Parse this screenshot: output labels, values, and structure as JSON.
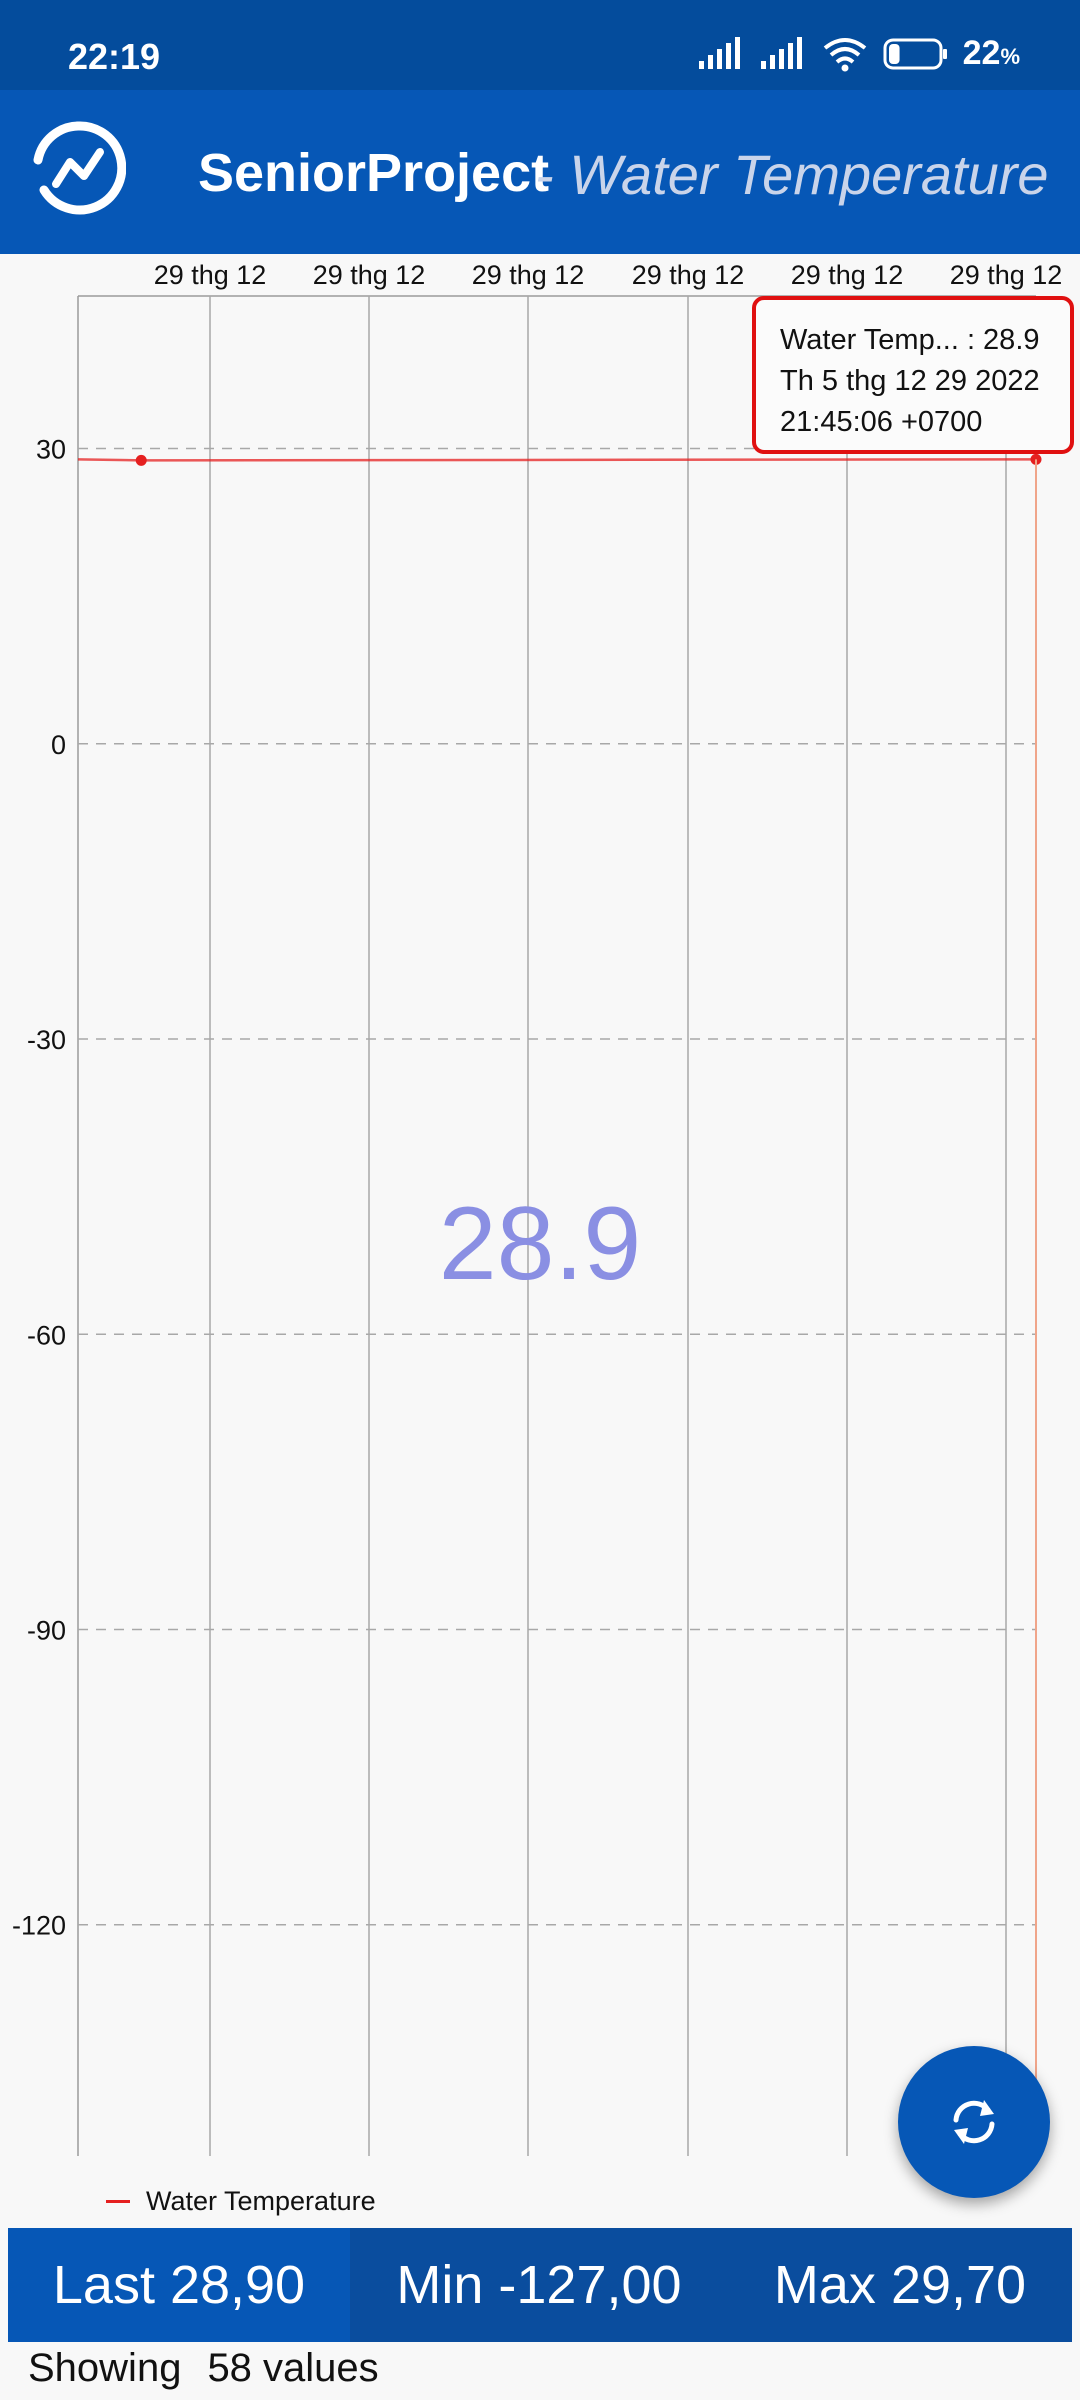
{
  "status_bar": {
    "time": "22:19",
    "battery_percent": "22",
    "battery_unit": "%",
    "battery_level": 0.22,
    "icons": [
      "cellular-signal-icon",
      "cellular-signal-icon",
      "wifi-icon",
      "battery-icon"
    ]
  },
  "app_bar": {
    "title": "SeniorProject",
    "subtitle": "- Water Temperature",
    "logo_icon": "chart-logo-icon"
  },
  "tooltip": {
    "line1": "Water Temp... : 28.9",
    "line2": "Th 5 thg 12 29 2022",
    "line3": "21:45:06 +0700"
  },
  "highlight_value": "28.9",
  "chart_data": {
    "type": "line",
    "x_tick_labels": [
      "29 thg 12",
      "29 thg 12",
      "29 thg 12",
      "29 thg 12",
      "29 thg 12",
      "29 thg 12"
    ],
    "y_tick_labels": [
      "30",
      "0",
      "-30",
      "-60",
      "-90",
      "-120"
    ],
    "y_ticks": [
      30,
      0,
      -30,
      -60,
      -90,
      -120
    ],
    "ylim": [
      -143.5,
      45.5
    ],
    "grid": true,
    "legend": "bottom-left",
    "series": [
      {
        "name": "Water Temperature",
        "color": "#e52020",
        "points": [
          {
            "t": 0.0,
            "y": 28.9
          },
          {
            "t": 0.066,
            "y": 28.8
          },
          {
            "t": 1.0,
            "y": 28.9
          }
        ],
        "selected_point_t": 1.0
      }
    ]
  },
  "legend": {
    "label": "Water Temperature",
    "color": "#e52020"
  },
  "fab": {
    "icon": "refresh-icon"
  },
  "stats": {
    "last": "Last 28,90",
    "min": "Min -127,00",
    "max": "Max 29,70"
  },
  "footer": {
    "label": "Showing",
    "value": "58 values"
  }
}
